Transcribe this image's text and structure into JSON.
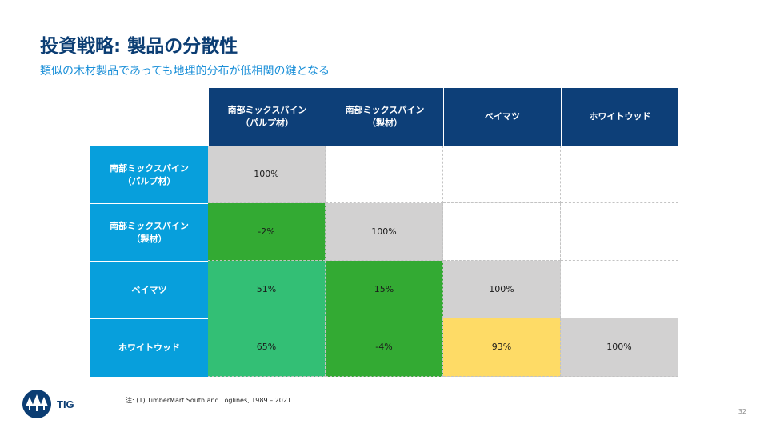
{
  "title": "投資戦略: 製品の分散性",
  "subtitle": "類似の木材製品であっても地理的分布が低相関の鍵となる",
  "matrix": {
    "columns": [
      "南部ミックスパイン\n（パルプ材）",
      "南部ミックスパイン\n（製材）",
      "ベイマツ",
      "ホワイトウッド"
    ],
    "rows": [
      {
        "label": "南部ミックスパイン\n（パルプ材）",
        "cells": [
          "100%",
          "",
          "",
          ""
        ]
      },
      {
        "label": "南部ミックスパイン\n（製材）",
        "cells": [
          "-2%",
          "100%",
          "",
          ""
        ]
      },
      {
        "label": "ベイマツ",
        "cells": [
          "51%",
          "15%",
          "100%",
          ""
        ]
      },
      {
        "label": "ホワイトウッド",
        "cells": [
          "65%",
          "-4%",
          "93%",
          "100%"
        ]
      }
    ],
    "cell_colors": [
      [
        "#d2d1d1",
        "#ffffff",
        "#ffffff",
        "#ffffff"
      ],
      [
        "#33aa33",
        "#d2d1d1",
        "#ffffff",
        "#ffffff"
      ],
      [
        "#33bf75",
        "#33aa33",
        "#d2d1d1",
        "#ffffff"
      ],
      [
        "#33bf75",
        "#33aa33",
        "#fedb66",
        "#d2d1d1"
      ]
    ],
    "header_color": "#0d3f78",
    "row_header_color": "#079fdc"
  },
  "logo": {
    "text": "TIG",
    "icon": "tree-logo-icon"
  },
  "footnote": "注: (1) TimberMart South and Loglines, 1989 – 2021.",
  "page_number": "32"
}
